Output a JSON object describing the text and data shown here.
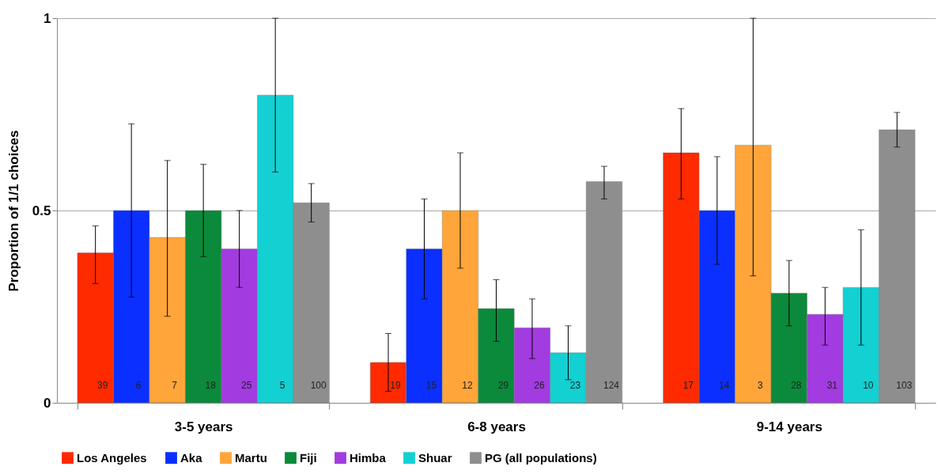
{
  "chart_data": {
    "type": "bar",
    "ylabel": "Proportion of 1/1 choices",
    "categories": [
      "3-5 years",
      "6-8 years",
      "9-14 years"
    ],
    "series": [
      {
        "name": "Los Angeles",
        "color": "#ff2a00",
        "values": [
          0.39,
          0.105,
          0.65
        ],
        "errors": [
          [
            0.31,
            0.46
          ],
          [
            0.03,
            0.18
          ],
          [
            0.53,
            0.765
          ]
        ]
      },
      {
        "name": "Aka",
        "color": "#0a2fff",
        "values": [
          0.5,
          0.4,
          0.5
        ],
        "errors": [
          [
            0.275,
            0.725
          ],
          [
            0.27,
            0.53
          ],
          [
            0.36,
            0.64
          ]
        ]
      },
      {
        "name": "Martu",
        "color": "#ffa53a",
        "values": [
          0.43,
          0.5,
          0.67
        ],
        "errors": [
          [
            0.225,
            0.63
          ],
          [
            0.35,
            0.65
          ],
          [
            0.33,
            1.0
          ]
        ]
      },
      {
        "name": "Fiji",
        "color": "#0b8a3b",
        "values": [
          0.5,
          0.245,
          0.285
        ],
        "errors": [
          [
            0.38,
            0.62
          ],
          [
            0.16,
            0.32
          ],
          [
            0.2,
            0.37
          ]
        ]
      },
      {
        "name": "Himba",
        "color": "#a23be0",
        "values": [
          0.4,
          0.195,
          0.23
        ],
        "errors": [
          [
            0.3,
            0.5
          ],
          [
            0.115,
            0.27
          ],
          [
            0.15,
            0.3
          ]
        ]
      },
      {
        "name": "Shuar",
        "color": "#13d0d2",
        "values": [
          0.8,
          0.13,
          0.3
        ],
        "errors": [
          [
            0.6,
            1.0
          ],
          [
            0.06,
            0.2
          ],
          [
            0.15,
            0.45
          ]
        ]
      },
      {
        "name": "PG (all populations)",
        "color": "#8e8e8e",
        "values": [
          0.52,
          0.575,
          0.71
        ],
        "errors": [
          [
            0.47,
            0.57
          ],
          [
            0.53,
            0.615
          ],
          [
            0.665,
            0.755
          ]
        ]
      }
    ],
    "annotations": [
      "39",
      "6",
      "7",
      "18",
      "25",
      "5",
      "100",
      "19",
      "15",
      "12",
      "29",
      "26",
      "23",
      "124",
      "17",
      "14",
      "3",
      "28",
      "31",
      "10",
      "103"
    ],
    "ylim": [
      0,
      1
    ],
    "yticks": [
      0,
      0.5,
      1
    ],
    "grid": "y",
    "legend": "bottom"
  }
}
